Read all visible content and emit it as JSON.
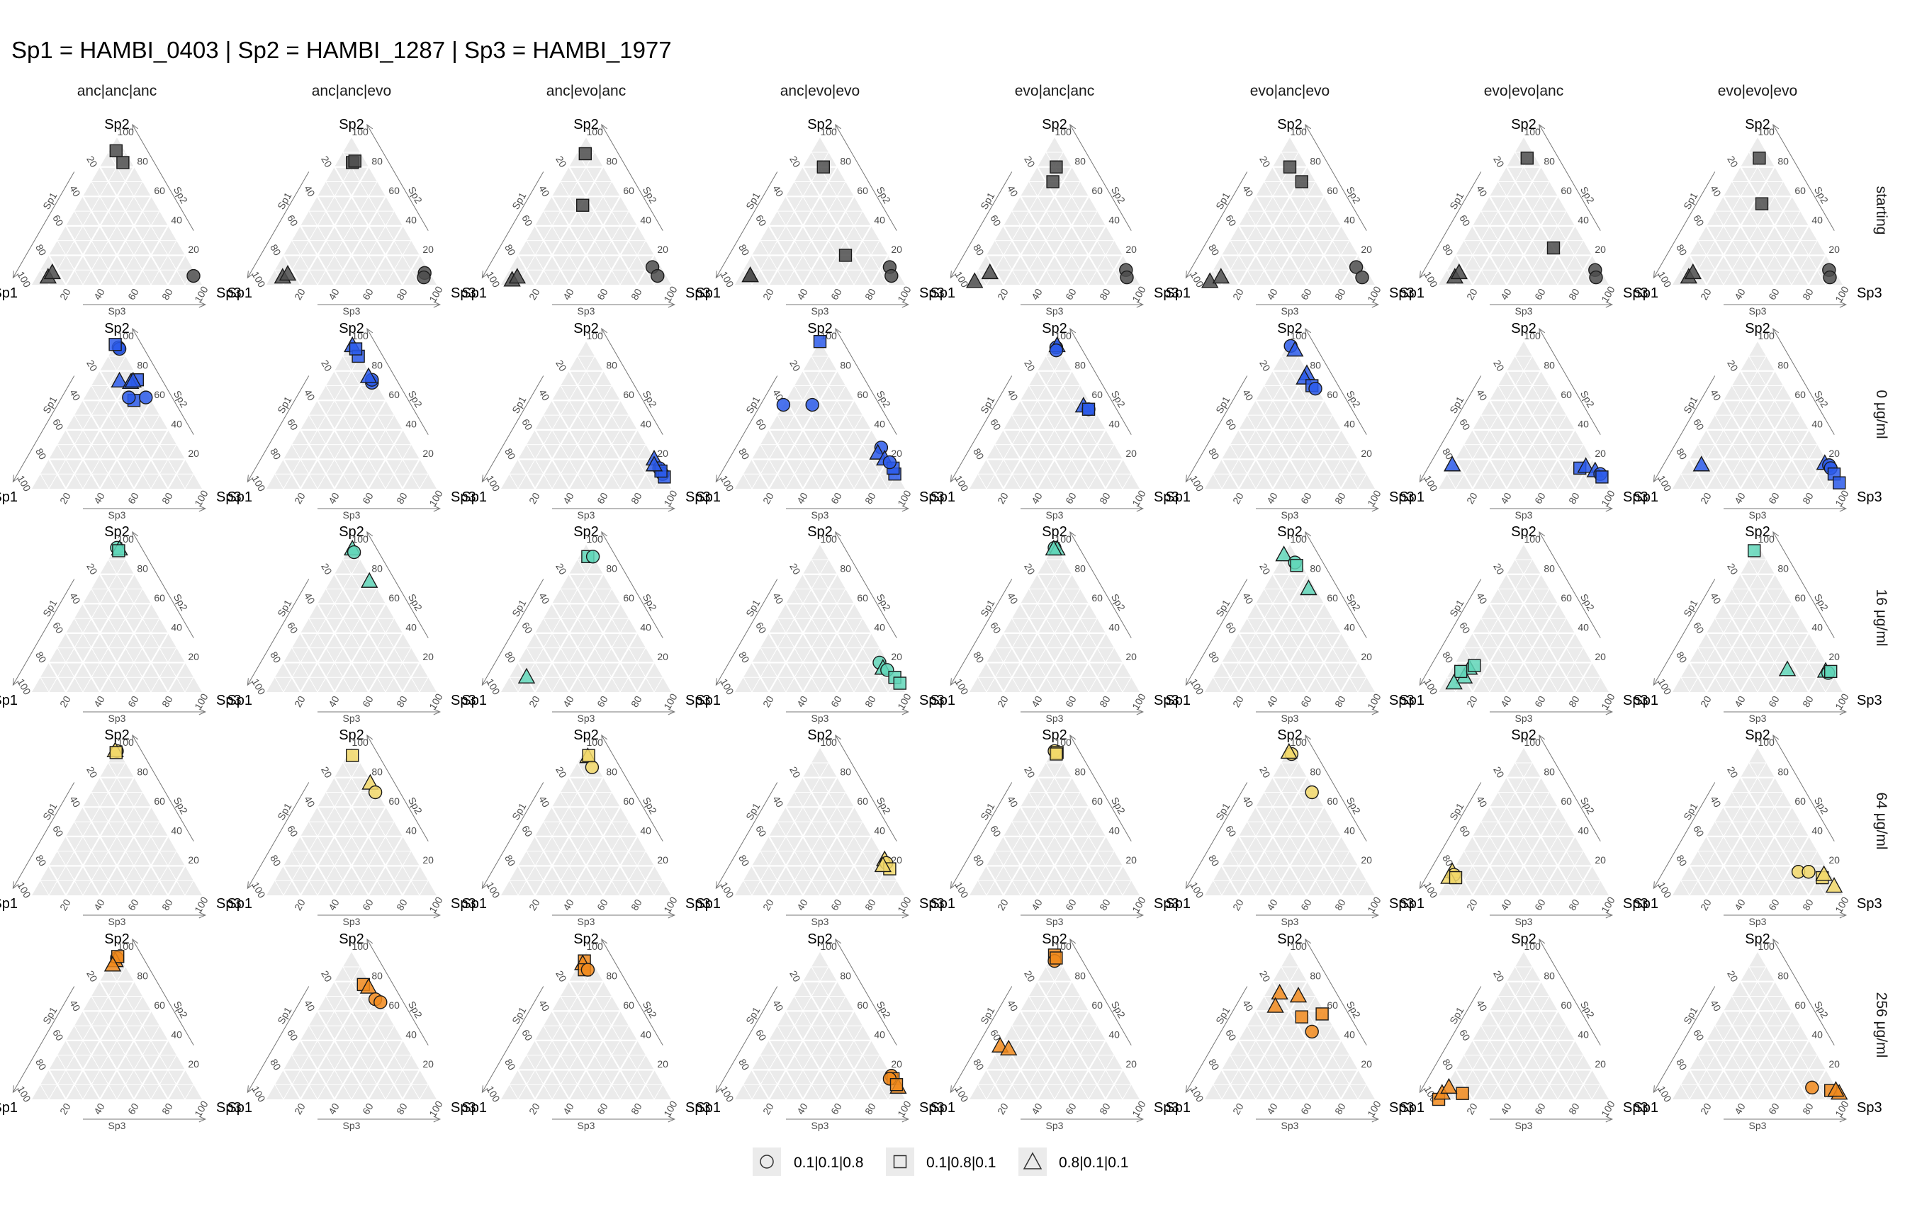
{
  "chart_data": {
    "type": "scatter",
    "subtype": "ternary",
    "title": "Sp1 = HAMBI_0403 | Sp2 = HAMBI_1287 | Sp3 = HAMBI_1977",
    "vertices": {
      "left": "Sp1",
      "top": "Sp2",
      "right": "Sp3"
    },
    "axis_titles": {
      "left": "Sp1",
      "right": "Sp2",
      "bottom": "Sp3"
    },
    "ticks": [
      "20",
      "40",
      "60",
      "80",
      "100"
    ],
    "columns": [
      "anc|anc|anc",
      "anc|anc|evo",
      "anc|evo|anc",
      "anc|evo|evo",
      "evo|anc|anc",
      "evo|anc|evo",
      "evo|evo|anc",
      "evo|evo|evo"
    ],
    "rows": [
      {
        "label": "starting",
        "color": "#4d4d4d"
      },
      {
        "label": "0 μg/ml",
        "color": "#2c5bea"
      },
      {
        "label": "16 μg/ml",
        "color": "#60d6b8"
      },
      {
        "label": "64 μg/ml",
        "color": "#f2d86a"
      },
      {
        "label": "256 μg/ml",
        "color": "#f18a1c"
      }
    ],
    "legend": [
      {
        "shape": "circle",
        "label": "0.1|0.1|0.8"
      },
      {
        "shape": "square",
        "label": "0.1|0.8|0.1"
      },
      {
        "shape": "triangle",
        "label": "0.8|0.1|0.1"
      }
    ],
    "points": [
      [
        [
          [
            "s",
            5,
            91,
            4
          ],
          [
            "s",
            5,
            83,
            12
          ],
          [
            "t",
            88,
            5,
            7
          ],
          [
            "t",
            84,
            8,
            8
          ],
          [
            "c",
            2,
            6,
            92
          ]
        ],
        [
          [
            "s",
            8,
            83,
            9
          ],
          [
            "s",
            6,
            84,
            10
          ],
          [
            "t",
            88,
            5,
            7
          ],
          [
            "t",
            84,
            7,
            9
          ],
          [
            "c",
            3,
            8,
            89
          ],
          [
            "c",
            5,
            5,
            90
          ]
        ],
        [
          [
            "s",
            6,
            89,
            5
          ],
          [
            "s",
            25,
            54,
            21
          ],
          [
            "t",
            92,
            3,
            5
          ],
          [
            "t",
            88,
            5,
            7
          ],
          [
            "c",
            5,
            12,
            83
          ],
          [
            "c",
            5,
            6,
            89
          ]
        ],
        [
          [
            "s",
            8,
            80,
            12
          ],
          [
            "s",
            25,
            20,
            55
          ],
          [
            "t",
            88,
            6,
            6
          ],
          [
            "t",
            88,
            6,
            6
          ],
          [
            "c",
            3,
            12,
            85
          ],
          [
            "c",
            5,
            6,
            89
          ]
        ],
        [
          [
            "s",
            9,
            80,
            11
          ],
          [
            "s",
            16,
            70,
            14
          ],
          [
            "t",
            96,
            2,
            2
          ],
          [
            "t",
            84,
            8,
            8
          ],
          [
            "c",
            3,
            10,
            87
          ],
          [
            "c",
            5,
            5,
            90
          ]
        ],
        [
          [
            "s",
            10,
            80,
            10
          ],
          [
            "s",
            8,
            70,
            22
          ],
          [
            "t",
            96,
            2,
            2
          ],
          [
            "t",
            88,
            5,
            7
          ],
          [
            "c",
            5,
            12,
            83
          ],
          [
            "c",
            5,
            5,
            90
          ]
        ],
        [
          [
            "s",
            5,
            86,
            9
          ],
          [
            "s",
            20,
            25,
            55
          ],
          [
            "t",
            88,
            5,
            7
          ],
          [
            "t",
            84,
            8,
            8
          ],
          [
            "c",
            3,
            10,
            87
          ],
          [
            "c",
            5,
            5,
            90
          ]
        ],
        [
          [
            "s",
            6,
            86,
            8
          ],
          [
            "s",
            20,
            55,
            25
          ],
          [
            "t",
            88,
            5,
            7
          ],
          [
            "t",
            84,
            8,
            8
          ],
          [
            "c",
            3,
            10,
            87
          ],
          [
            "c",
            5,
            5,
            90
          ]
        ]
      ],
      [
        [
          [
            "c",
            1,
            96,
            3
          ],
          [
            "c",
            1,
            95,
            4
          ],
          [
            "s",
            2,
            98,
            0
          ],
          [
            "s",
            1,
            74,
            25
          ],
          [
            "s",
            10,
            60,
            30
          ],
          [
            "t",
            12,
            73,
            15
          ],
          [
            "t",
            6,
            72,
            22
          ],
          [
            "c",
            12,
            62,
            26
          ],
          [
            "c",
            2,
            62,
            36
          ],
          [
            "t",
            4,
            73,
            23
          ]
        ],
        [
          [
            "t",
            1,
            97,
            2
          ],
          [
            "s",
            1,
            90,
            9
          ],
          [
            "s",
            0,
            95,
            5
          ],
          [
            "c",
            2,
            72,
            26
          ],
          [
            "c",
            1,
            74,
            25
          ],
          [
            "t",
            2,
            76,
            22
          ]
        ],
        [
          [
            "t",
            0,
            20,
            80
          ],
          [
            "c",
            0,
            14,
            86
          ],
          [
            "c",
            0,
            10,
            90
          ],
          [
            "s",
            0,
            8,
            92
          ],
          [
            "s",
            0,
            12,
            88
          ],
          [
            "t",
            2,
            16,
            82
          ]
        ],
        [
          [
            "s",
            0,
            100,
            0
          ],
          [
            "c",
            43,
            57,
            0
          ],
          [
            "c",
            26,
            57,
            17
          ],
          [
            "c",
            0,
            28,
            72
          ],
          [
            "t",
            4,
            24,
            72
          ],
          [
            "t",
            2,
            20,
            78
          ],
          [
            "s",
            1,
            10,
            89
          ],
          [
            "s",
            0,
            14,
            86
          ],
          [
            "c",
            0,
            18,
            82
          ]
        ],
        [
          [
            "c",
            1,
            96,
            3
          ],
          [
            "t",
            0,
            97,
            3
          ],
          [
            "c",
            2,
            94,
            4
          ],
          [
            "t",
            5,
            56,
            39
          ],
          [
            "c",
            3,
            54,
            43
          ],
          [
            "s",
            3,
            54,
            43
          ]
        ],
        [
          [
            "c",
            1,
            97,
            2
          ],
          [
            "t",
            0,
            94,
            6
          ],
          [
            "t",
            1,
            78,
            21
          ],
          [
            "t",
            4,
            75,
            21
          ],
          [
            "s",
            2,
            70,
            28
          ],
          [
            "c",
            1,
            68,
            31
          ]
        ],
        [
          [
            "t",
            84,
            16,
            0
          ],
          [
            "s",
            10,
            14,
            76
          ],
          [
            "t",
            6,
            15,
            79
          ],
          [
            "t",
            2,
            12,
            86
          ],
          [
            "c",
            0,
            10,
            90
          ],
          [
            "s",
            0,
            8,
            92
          ]
        ],
        [
          [
            "t",
            75,
            16,
            9
          ],
          [
            "t",
            2,
            17,
            81
          ],
          [
            "c",
            0,
            16,
            84
          ],
          [
            "c",
            0,
            14,
            86
          ],
          [
            "s",
            0,
            10,
            90
          ],
          [
            "s",
            0,
            4,
            96
          ]
        ]
      ],
      [
        [
          [
            "c",
            1,
            98,
            1
          ],
          [
            "t",
            0,
            97,
            3
          ],
          [
            "s",
            1,
            96,
            3
          ]
        ],
        [
          [
            "t",
            1,
            97,
            2
          ],
          [
            "c",
            1,
            95,
            4
          ],
          [
            "t",
            2,
            75,
            23
          ]
        ],
        [
          [
            "s",
            3,
            92,
            5
          ],
          [
            "c",
            0,
            92,
            8
          ],
          [
            "t",
            80,
            10,
            10
          ]
        ],
        [
          [
            "c",
            5,
            20,
            75
          ],
          [
            "t",
            5,
            16,
            79
          ],
          [
            "c",
            3,
            15,
            82
          ],
          [
            "s",
            1,
            10,
            89
          ],
          [
            "s",
            0,
            6,
            94
          ]
        ],
        [
          [
            "c",
            1,
            98,
            1
          ],
          [
            "t",
            0,
            97,
            3
          ],
          [
            "t",
            2,
            97,
            1
          ]
        ],
        [
          [
            "t",
            7,
            93,
            0
          ],
          [
            "c",
            3,
            88,
            9
          ],
          [
            "s",
            3,
            86,
            11
          ],
          [
            "t",
            4,
            70,
            26
          ]
        ],
        [
          [
            "t",
            74,
            16,
            10
          ],
          [
            "s",
            70,
            18,
            12
          ],
          [
            "t",
            80,
            10,
            10
          ],
          [
            "s",
            80,
            14,
            6
          ],
          [
            "t",
            88,
            6,
            6
          ]
        ],
        [
          [
            "s",
            4,
            96,
            0
          ],
          [
            "t",
            25,
            15,
            60
          ],
          [
            "t",
            3,
            14,
            83
          ],
          [
            "c",
            2,
            13,
            85
          ],
          [
            "s",
            0,
            14,
            86
          ]
        ]
      ],
      [
        [
          [
            "c",
            1,
            98,
            1
          ],
          [
            "t",
            2,
            98,
            0
          ],
          [
            "s",
            2,
            97,
            1
          ]
        ],
        [
          [
            "s",
            2,
            95,
            3
          ],
          [
            "t",
            1,
            76,
            23
          ],
          [
            "c",
            1,
            70,
            29
          ]
        ],
        [
          [
            "t",
            2,
            94,
            4
          ],
          [
            "c",
            3,
            87,
            10
          ],
          [
            "s",
            1,
            95,
            4
          ]
        ],
        [
          [
            "t",
            0,
            24,
            76
          ],
          [
            "c",
            0,
            22,
            78
          ],
          [
            "s",
            0,
            18,
            82
          ],
          [
            "t",
            3,
            20,
            77
          ]
        ],
        [
          [
            "c",
            1,
            98,
            1
          ],
          [
            "s",
            0,
            97,
            3
          ],
          [
            "s",
            1,
            96,
            3
          ]
        ],
        [
          [
            "c",
            1,
            96,
            3
          ],
          [
            "t",
            2,
            97,
            1
          ],
          [
            "c",
            2,
            70,
            28
          ]
        ],
        [
          [
            "t",
            84,
            16,
            0
          ],
          [
            "c",
            84,
            14,
            2
          ],
          [
            "t",
            88,
            12,
            0
          ],
          [
            "s",
            84,
            12,
            4
          ]
        ],
        [
          [
            "c",
            18,
            16,
            66
          ],
          [
            "c",
            12,
            16,
            72
          ],
          [
            "s",
            6,
            12,
            82
          ],
          [
            "t",
            4,
            14,
            82
          ],
          [
            "t",
            2,
            6,
            92
          ]
        ]
      ],
      [
        [
          [
            "c",
            2,
            96,
            2
          ],
          [
            "t",
            4,
            94,
            2
          ],
          [
            "s",
            1,
            97,
            2
          ],
          [
            "t",
            7,
            91,
            2
          ]
        ],
        [
          [
            "s",
            4,
            78,
            18
          ],
          [
            "t",
            2,
            76,
            22
          ],
          [
            "c",
            2,
            68,
            30
          ],
          [
            "c",
            0,
            66,
            34
          ]
        ],
        [
          [
            "s",
            4,
            94,
            2
          ],
          [
            "t",
            6,
            92,
            2
          ],
          [
            "s",
            7,
            88,
            5
          ],
          [
            "c",
            5,
            88,
            7
          ]
        ],
        [
          [
            "c",
            0,
            16,
            84
          ],
          [
            "s",
            0,
            14,
            86
          ],
          [
            "t",
            0,
            8,
            92
          ],
          [
            "c",
            2,
            14,
            84
          ],
          [
            "s",
            0,
            10,
            90
          ]
        ],
        [
          [
            "s",
            1,
            98,
            1
          ],
          [
            "c",
            3,
            94,
            3
          ],
          [
            "s",
            1,
            96,
            3
          ],
          [
            "t",
            64,
            36,
            0
          ],
          [
            "t",
            60,
            34,
            6
          ]
        ],
        [
          [
            "t",
            20,
            72,
            8
          ],
          [
            "t",
            27,
            63,
            10
          ],
          [
            "s",
            15,
            56,
            29
          ],
          [
            "c",
            14,
            46,
            40
          ],
          [
            "s",
            2,
            58,
            40
          ],
          [
            "t",
            10,
            70,
            20
          ]
        ],
        [
          [
            "s",
            100,
            0,
            0
          ],
          [
            "t",
            96,
            4,
            0
          ],
          [
            "s",
            84,
            4,
            12
          ],
          [
            "t",
            90,
            8,
            2
          ]
        ],
        [
          [
            "c",
            14,
            8,
            78
          ],
          [
            "s",
            4,
            6,
            90
          ],
          [
            "t",
            0,
            4,
            96
          ],
          [
            "t",
            1,
            6,
            93
          ]
        ]
      ]
    ]
  }
}
